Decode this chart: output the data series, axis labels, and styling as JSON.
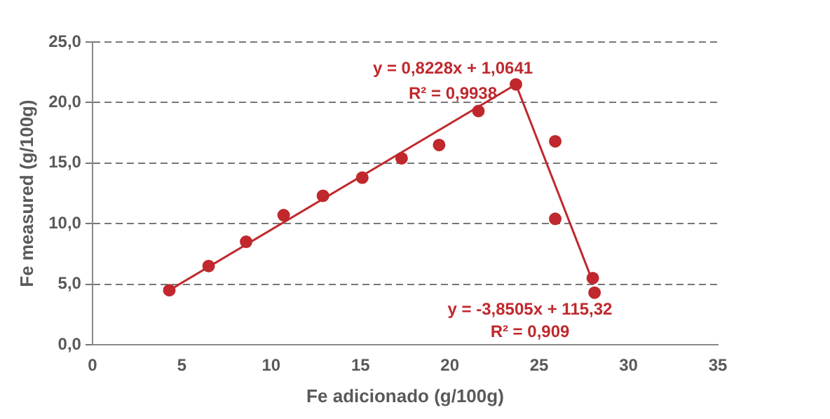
{
  "chart_data": {
    "type": "scatter",
    "xlabel": "Fe adicionado (g/100g)",
    "ylabel": "Fe measured (g/100g)",
    "series": [
      {
        "color": "#c0282d",
        "marker": "circle",
        "x": [
          4.3,
          6.5,
          8.6,
          10.7,
          12.9,
          15.1,
          17.3,
          19.4,
          21.6,
          23.7,
          25.9,
          25.9,
          28.0,
          28.1
        ],
        "values": [
          4.5,
          6.5,
          8.5,
          10.7,
          12.3,
          13.8,
          15.4,
          16.5,
          19.3,
          21.5,
          16.8,
          10.4,
          5.5,
          4.3
        ]
      },
      {
        "type": "line",
        "marker": "none",
        "color": "#c0282d",
        "x": [
          4.3,
          23.7
        ],
        "values": [
          4.5,
          21.5
        ]
      },
      {
        "type": "line",
        "marker": "none",
        "color": "#c0282d",
        "x": [
          23.7,
          28.0
        ],
        "values": [
          21.5,
          5.2
        ]
      }
    ],
    "xlim": [
      0,
      35
    ],
    "xticks": [
      0,
      5,
      10,
      15,
      20,
      25,
      30,
      35
    ],
    "ylim": [
      0,
      25
    ],
    "yticks": [
      {
        "value": 0,
        "label": "0,0"
      },
      {
        "value": 5,
        "label": "5,0"
      },
      {
        "value": 10,
        "label": "10,0"
      },
      {
        "value": 15,
        "label": "15,0"
      },
      {
        "value": 20,
        "label": "20,0"
      },
      {
        "value": 25,
        "label": "25,0"
      }
    ],
    "grid": "y",
    "legend": false,
    "annotations": [
      "y = 0,8228x + 1,0641",
      "R² = 0,9938",
      "y = -3,8505x + 115,32",
      "R² = 0,909"
    ]
  }
}
